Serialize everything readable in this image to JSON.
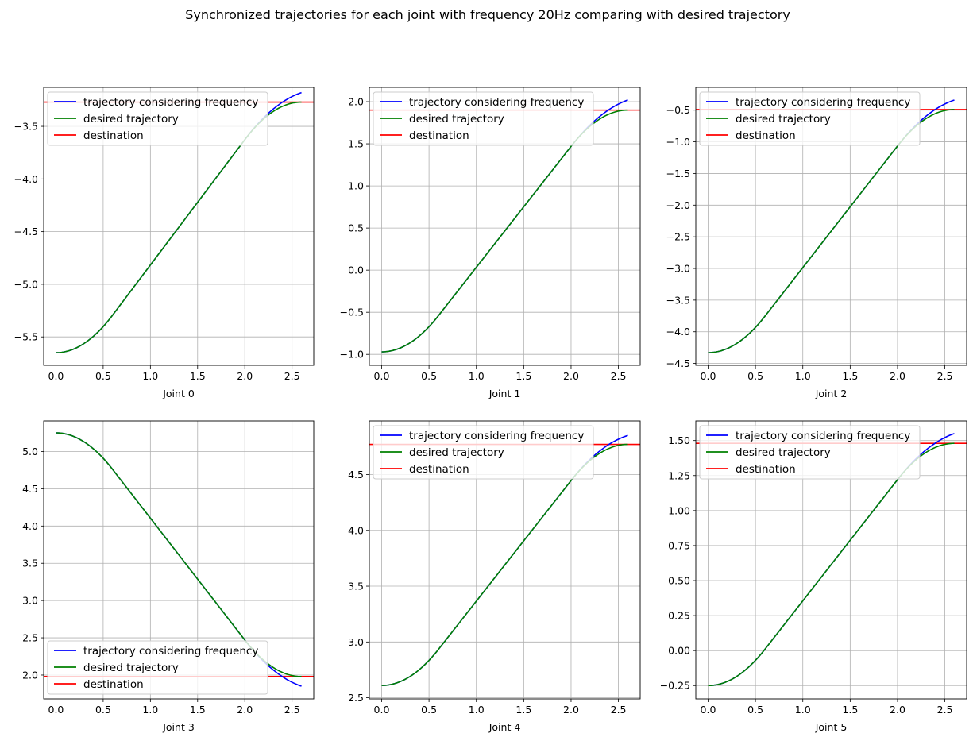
{
  "figure": {
    "title": "Synchronized trajectories for each joint with frequency 20Hz comparing with desired trajectory"
  },
  "colors": {
    "trajectory": "#0000ff",
    "desired": "#008000",
    "destination": "#ff0000",
    "grid": "#b0b0b0"
  },
  "chart_data": [
    {
      "type": "line",
      "xlabel": "Joint 0",
      "xlim": [
        -0.13,
        2.73
      ],
      "ylim": [
        -5.77,
        -3.13
      ],
      "xticks": [
        0.0,
        0.5,
        1.0,
        1.5,
        2.0,
        2.5
      ],
      "xtick_labels": [
        "0.0",
        "0.5",
        "1.0",
        "1.5",
        "2.0",
        "2.5"
      ],
      "yticks": [
        -5.5,
        -5.0,
        -4.5,
        -4.0,
        -3.5
      ],
      "ytick_labels": [
        "−5.5",
        "−5.0",
        "−4.5",
        "−4.0",
        "−3.5"
      ],
      "grid": true,
      "legend_placement": "upper left",
      "start": -5.65,
      "destination": -3.27,
      "final_overshoot": -3.18,
      "series": [
        {
          "name": "trajectory considering frequency",
          "color": "#0000ff"
        },
        {
          "name": "desired trajectory",
          "color": "#008000"
        },
        {
          "name": "destination",
          "color": "#ff0000"
        }
      ]
    },
    {
      "type": "line",
      "xlabel": "Joint 1",
      "xlim": [
        -0.13,
        2.73
      ],
      "ylim": [
        -1.13,
        2.17
      ],
      "xticks": [
        0.0,
        0.5,
        1.0,
        1.5,
        2.0,
        2.5
      ],
      "xtick_labels": [
        "0.0",
        "0.5",
        "1.0",
        "1.5",
        "2.0",
        "2.5"
      ],
      "yticks": [
        -1.0,
        -0.5,
        0.0,
        0.5,
        1.0,
        1.5,
        2.0
      ],
      "ytick_labels": [
        "−1.0",
        "−0.5",
        "0.0",
        "0.5",
        "1.0",
        "1.5",
        "2.0"
      ],
      "grid": true,
      "legend_placement": "upper left",
      "start": -0.97,
      "destination": 1.9,
      "final_overshoot": 2.02,
      "series": [
        {
          "name": "trajectory considering frequency",
          "color": "#0000ff"
        },
        {
          "name": "desired trajectory",
          "color": "#008000"
        },
        {
          "name": "destination",
          "color": "#ff0000"
        }
      ]
    },
    {
      "type": "line",
      "xlabel": "Joint 2",
      "xlim": [
        -0.13,
        2.73
      ],
      "ylim": [
        -4.53,
        -0.14
      ],
      "xticks": [
        0.0,
        0.5,
        1.0,
        1.5,
        2.0,
        2.5
      ],
      "xtick_labels": [
        "0.0",
        "0.5",
        "1.0",
        "1.5",
        "2.0",
        "2.5"
      ],
      "yticks": [
        -4.5,
        -4.0,
        -3.5,
        -3.0,
        -2.5,
        -2.0,
        -1.5,
        -1.0,
        -0.5
      ],
      "ytick_labels": [
        "−4.5",
        "−4.0",
        "−3.5",
        "−3.0",
        "−2.5",
        "−2.0",
        "−1.5",
        "−1.0",
        "−0.5"
      ],
      "grid": true,
      "legend_placement": "upper left",
      "start": -4.33,
      "destination": -0.49,
      "final_overshoot": -0.34,
      "series": [
        {
          "name": "trajectory considering frequency",
          "color": "#0000ff"
        },
        {
          "name": "desired trajectory",
          "color": "#008000"
        },
        {
          "name": "destination",
          "color": "#ff0000"
        }
      ]
    },
    {
      "type": "line",
      "xlabel": "Joint 3",
      "xlim": [
        -0.13,
        2.73
      ],
      "ylim": [
        1.68,
        5.41
      ],
      "xticks": [
        0.0,
        0.5,
        1.0,
        1.5,
        2.0,
        2.5
      ],
      "xtick_labels": [
        "0.0",
        "0.5",
        "1.0",
        "1.5",
        "2.0",
        "2.5"
      ],
      "yticks": [
        2.0,
        2.5,
        3.0,
        3.5,
        4.0,
        4.5,
        5.0
      ],
      "ytick_labels": [
        "2.0",
        "2.5",
        "3.0",
        "3.5",
        "4.0",
        "4.5",
        "5.0"
      ],
      "grid": true,
      "legend_placement": "lower left",
      "start": 5.25,
      "destination": 1.98,
      "final_overshoot": 1.85,
      "series": [
        {
          "name": "trajectory considering frequency",
          "color": "#0000ff"
        },
        {
          "name": "desired trajectory",
          "color": "#008000"
        },
        {
          "name": "destination",
          "color": "#ff0000"
        }
      ]
    },
    {
      "type": "line",
      "xlabel": "Joint 4",
      "xlim": [
        -0.13,
        2.73
      ],
      "ylim": [
        2.49,
        4.98
      ],
      "xticks": [
        0.0,
        0.5,
        1.0,
        1.5,
        2.0,
        2.5
      ],
      "xtick_labels": [
        "0.0",
        "0.5",
        "1.0",
        "1.5",
        "2.0",
        "2.5"
      ],
      "yticks": [
        2.5,
        3.0,
        3.5,
        4.0,
        4.5
      ],
      "ytick_labels": [
        "2.5",
        "3.0",
        "3.5",
        "4.0",
        "4.5"
      ],
      "grid": true,
      "legend_placement": "upper left",
      "start": 2.61,
      "destination": 4.77,
      "final_overshoot": 4.85,
      "series": [
        {
          "name": "trajectory considering frequency",
          "color": "#0000ff"
        },
        {
          "name": "desired trajectory",
          "color": "#008000"
        },
        {
          "name": "destination",
          "color": "#ff0000"
        }
      ]
    },
    {
      "type": "line",
      "xlabel": "Joint 5",
      "xlim": [
        -0.13,
        2.73
      ],
      "ylim": [
        -0.345,
        1.64
      ],
      "xticks": [
        0.0,
        0.5,
        1.0,
        1.5,
        2.0,
        2.5
      ],
      "xtick_labels": [
        "0.0",
        "0.5",
        "1.0",
        "1.5",
        "2.0",
        "2.5"
      ],
      "yticks": [
        -0.25,
        0.0,
        0.25,
        0.5,
        0.75,
        1.0,
        1.25,
        1.5
      ],
      "ytick_labels": [
        "−0.25",
        "0.00",
        "0.25",
        "0.50",
        "0.75",
        "1.00",
        "1.25",
        "1.50"
      ],
      "grid": true,
      "legend_placement": "upper left",
      "start": -0.25,
      "destination": 1.48,
      "final_overshoot": 1.55,
      "series": [
        {
          "name": "trajectory considering frequency",
          "color": "#0000ff"
        },
        {
          "name": "desired trajectory",
          "color": "#008000"
        },
        {
          "name": "destination",
          "color": "#ff0000"
        }
      ]
    }
  ]
}
